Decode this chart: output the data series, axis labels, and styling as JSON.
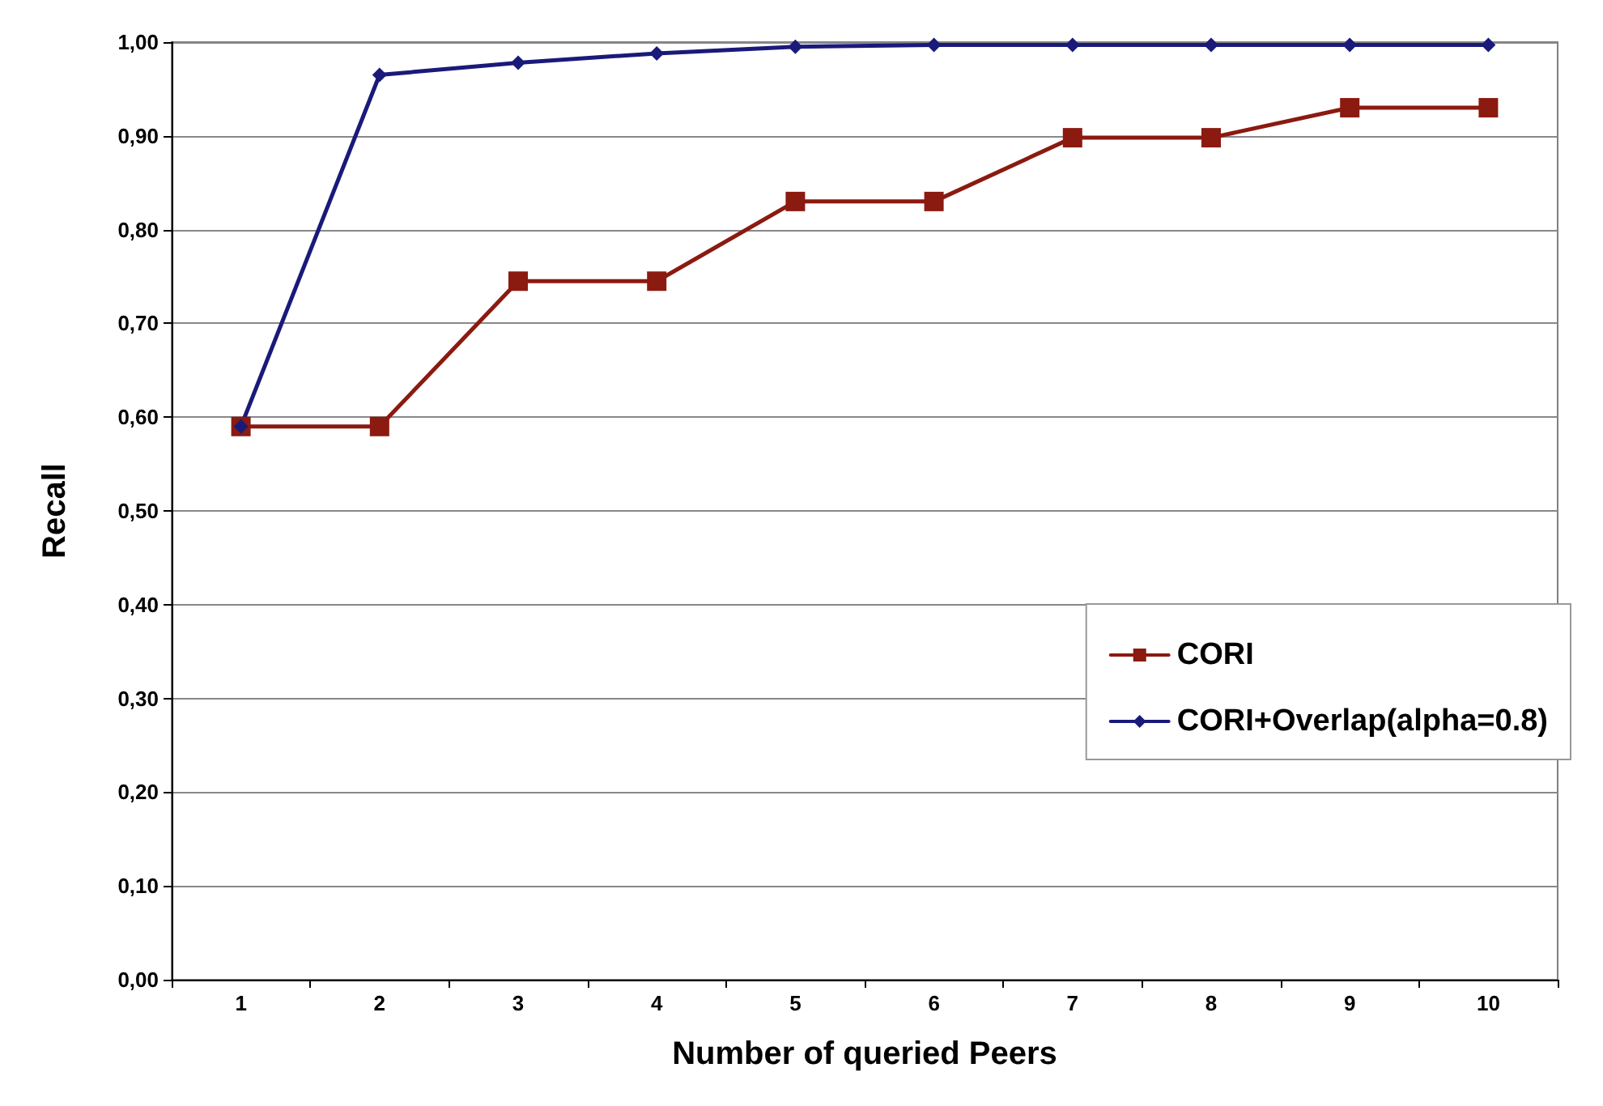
{
  "chart_data": {
    "type": "line",
    "xlabel": "Number of queried Peers",
    "ylabel": "Recall",
    "categories": [
      "1",
      "2",
      "3",
      "4",
      "5",
      "6",
      "7",
      "8",
      "9",
      "10"
    ],
    "series": [
      {
        "name": "CORI",
        "color": "#8b1a10",
        "marker": "square",
        "values": [
          0.59,
          0.59,
          0.745,
          0.745,
          0.83,
          0.83,
          0.898,
          0.898,
          0.93,
          0.93
        ]
      },
      {
        "name": "CORI+Overlap(alpha=0.8)",
        "color": "#1a1a7a",
        "marker": "diamond",
        "values": [
          0.59,
          0.965,
          0.978,
          0.988,
          0.995,
          0.997,
          0.997,
          0.997,
          0.997,
          0.997
        ]
      }
    ],
    "ylim": [
      0,
      1
    ],
    "yticks": [
      {
        "value": 0,
        "label": "0,00"
      },
      {
        "value": 0.1,
        "label": "0,10"
      },
      {
        "value": 0.2,
        "label": "0,20"
      },
      {
        "value": 0.3,
        "label": "0,30"
      },
      {
        "value": 0.4,
        "label": "0,40"
      },
      {
        "value": 0.5,
        "label": "0,50"
      },
      {
        "value": 0.6,
        "label": "0,60"
      },
      {
        "value": 0.7,
        "label": "0,70"
      },
      {
        "value": 0.8,
        "label": "0,80"
      },
      {
        "value": 0.9,
        "label": "0,90"
      },
      {
        "value": 1,
        "label": "1,00"
      }
    ],
    "grid": "y",
    "legend": "right",
    "line_style": "solid"
  }
}
